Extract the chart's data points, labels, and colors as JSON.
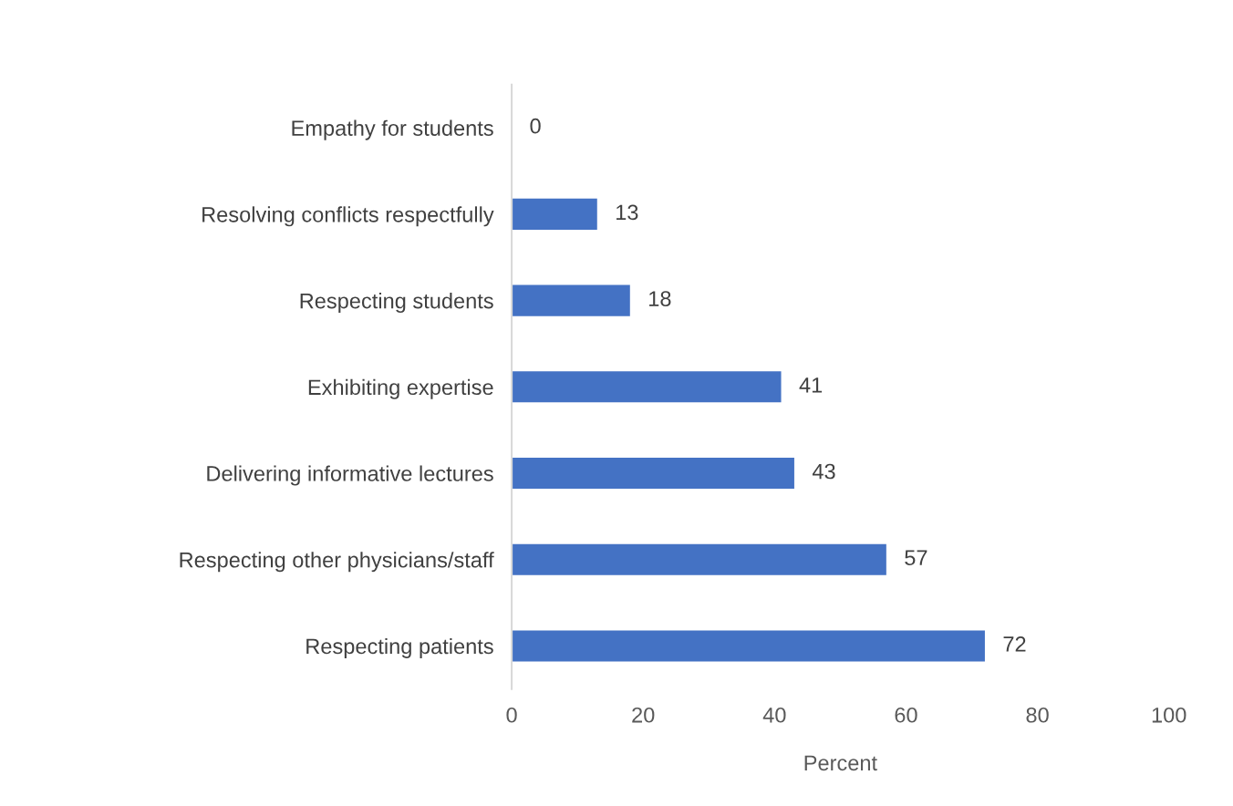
{
  "chart_data": {
    "type": "bar",
    "orientation": "horizontal",
    "categories": [
      "Empathy for students",
      "Resolving conflicts respectfully",
      "Respecting students",
      "Exhibiting expertise",
      "Delivering informative lectures",
      "Respecting other physicians/staff",
      "Respecting patients"
    ],
    "values": [
      0,
      13,
      18,
      41,
      43,
      57,
      72
    ],
    "color": "#4472c4",
    "xlabel": "Percent",
    "xlim": [
      0,
      100
    ],
    "xticks": [
      0,
      20,
      40,
      60,
      80,
      100
    ],
    "data_labels": true,
    "grid": false,
    "legend": false
  }
}
